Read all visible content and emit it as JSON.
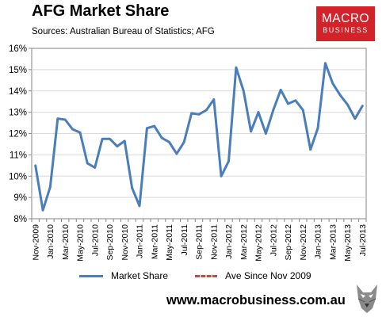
{
  "title": "AFG Market Share",
  "subtitle": "Sources: Australian Bureau of Statistics; AFG",
  "logo": {
    "line1": "MACRO",
    "line2": "BUSINESS",
    "bg": "#d2232a"
  },
  "footer": "www.macrobusiness.com.au",
  "chart_data": {
    "type": "line",
    "ylim": [
      8,
      16
    ],
    "y_ticks": [
      "8%",
      "9%",
      "10%",
      "11%",
      "12%",
      "13%",
      "14%",
      "15%",
      "16%"
    ],
    "x_tick_labels": [
      "Nov-2009",
      "Jan-2010",
      "Mar-2010",
      "May-2010",
      "Jul-2010",
      "Sep-2010",
      "Nov-2010",
      "Jan-2011",
      "Mar-2011",
      "May-2011",
      "Jul-2011",
      "Sep-2011",
      "Nov-2011",
      "Jan-2012",
      "Mar-2012",
      "May-2012",
      "Jul-2012",
      "Sep-2012",
      "Nov-2012",
      "Jan-2013",
      "Mar-2013",
      "May-2013",
      "Jul-2013"
    ],
    "grid": true,
    "legend_position": "bottom",
    "series": [
      {
        "name": "Market Share",
        "color": "#4a7ebb",
        "values": [
          10.5,
          8.4,
          9.5,
          12.7,
          12.65,
          12.2,
          12.05,
          10.6,
          10.4,
          11.75,
          11.75,
          11.4,
          11.65,
          9.45,
          8.6,
          12.25,
          12.35,
          11.8,
          11.6,
          11.05,
          11.6,
          12.95,
          12.9,
          13.1,
          13.6,
          10.0,
          10.7,
          15.1,
          14.0,
          12.1,
          13.0,
          12.0,
          13.1,
          14.05,
          13.4,
          13.55,
          13.1,
          11.25,
          12.25,
          15.3,
          14.35,
          13.8,
          13.35,
          12.7,
          13.3
        ]
      },
      {
        "name": "Ave Since Nov 2009",
        "color": "#be4b48",
        "dashed": true,
        "values": []
      }
    ]
  }
}
